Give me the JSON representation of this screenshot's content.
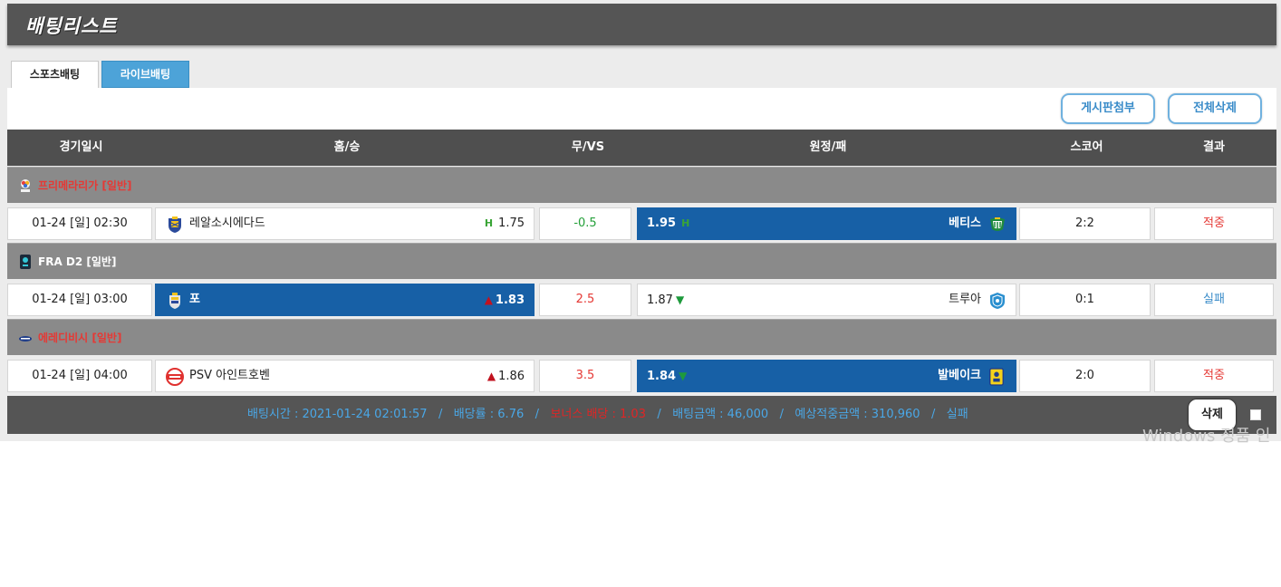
{
  "page": {
    "title": "배팅리스트"
  },
  "tabs": [
    {
      "label": "스포츠배팅",
      "active": true
    },
    {
      "label": "라이브배팅",
      "active": false
    }
  ],
  "actions": {
    "attach_label": "게시판첨부",
    "delete_all_label": "전체삭제"
  },
  "columns": [
    "경기일시",
    "홈/승",
    "무/VS",
    "원정/패",
    "스코어",
    "결과"
  ],
  "colors": {
    "header_bg": "#555555",
    "selected": "#1760a6",
    "tab_inactive": "#4da3d8",
    "win": "#e53935",
    "lose": "#3a8cc9",
    "league_bg": "#8a8a8a"
  },
  "leagues": [
    {
      "name": "프리메라리가 [일반]",
      "icon": "laliga-icon",
      "match": {
        "date": "01-24 [일] 02:30",
        "home": {
          "name": "레알소시에다드",
          "odds": "1.75",
          "mark": "H",
          "selected": false,
          "icon": "real-sociedad-crest-icon"
        },
        "vs": "-0.5",
        "away": {
          "name": "베티스",
          "odds": "1.95",
          "mark": "H",
          "selected": true,
          "icon": "betis-crest-icon"
        },
        "score": "2:2",
        "result": "적중"
      }
    },
    {
      "name": "FRA D2 [일반]",
      "icon": "ligue2-icon",
      "match": {
        "date": "01-24 [일] 03:00",
        "home": {
          "name": "포",
          "odds": "1.83",
          "trend": "up",
          "selected": true,
          "icon": "pau-crest-icon"
        },
        "vs": "2.5",
        "away": {
          "name": "트루아",
          "odds": "1.87",
          "trend": "down",
          "selected": false,
          "icon": "troyes-crest-icon"
        },
        "score": "0:1",
        "result": "실패"
      }
    },
    {
      "name": "에레디비시 [일반]",
      "icon": "eredivisie-icon",
      "match": {
        "date": "01-24 [일] 04:00",
        "home": {
          "name": "PSV 아인트호벤",
          "odds": "1.86",
          "trend": "up",
          "selected": false,
          "icon": "psv-crest-icon"
        },
        "vs": "3.5",
        "away": {
          "name": "발베이크",
          "odds": "1.84",
          "trend": "down",
          "selected": true,
          "icon": "waalwijk-crest-icon"
        },
        "score": "2:0",
        "result": "적중"
      }
    }
  ],
  "summary": {
    "bet_time": "배팅시간 : 2021-01-24 02:01:57",
    "odds_rate": "배당률 : 6.76",
    "bonus": "보너스 배당 : 1.03",
    "bet_amount": "배팅금액 : 46,000",
    "expected": "예상적중금액 : 310,960",
    "status": "실패",
    "separator": "/"
  },
  "footer": {
    "delete_label": "삭제"
  },
  "watermark": "Windows 정품 인"
}
